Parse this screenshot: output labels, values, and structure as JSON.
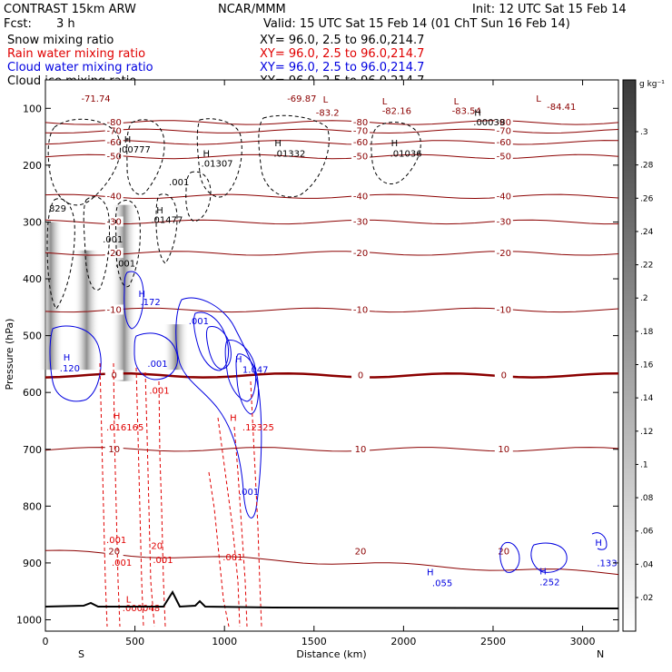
{
  "header": {
    "model": "CONTRAST 15km ARW",
    "org": "NCAR/MMM",
    "init": "Init: 12 UTC Sat 15 Feb 14",
    "fcst_label": "Fcst:",
    "fcst_value": "3 h",
    "valid": "Valid: 15 UTC Sat 15 Feb 14 (01 ChT Sun 16 Feb 14)"
  },
  "colors": {
    "snow": "#000000",
    "rain": "#e00000",
    "cloud_water": "#0000e0",
    "cloud_ice": "#000000",
    "temperature": "#8b0000",
    "terrain": "#000000"
  },
  "chart_data": {
    "type": "cross-section",
    "fields": [
      {
        "name": "Snow mixing ratio",
        "color": "#000000",
        "xy": "XY=  96.0,  2.5 to  96.0,214.7",
        "style": "shaded"
      },
      {
        "name": "Rain water mixing ratio",
        "color": "#e00000",
        "xy": "XY=  96.0,  2.5 to  96.0,214.7",
        "style": "dashed"
      },
      {
        "name": "Cloud water mixing ratio",
        "color": "#0000e0",
        "xy": "XY=  96.0,  2.5 to  96.0,214.7",
        "style": "solid"
      },
      {
        "name": "Cloud ice mixing ratio",
        "color": "#000000",
        "xy": "XY=  96.0,  2.5 to  96.0,214.7",
        "style": "dashed"
      }
    ],
    "xlabel": "Distance (km)",
    "ylabel": "Pressure (hPa)",
    "xlim": [
      0,
      3200
    ],
    "ylim": [
      1020,
      50
    ],
    "x_ticks": [
      0,
      500,
      1000,
      1500,
      2000,
      2500,
      3000
    ],
    "y_ticks": [
      100,
      200,
      300,
      400,
      500,
      600,
      700,
      800,
      900,
      1000
    ],
    "endpoint_labels": {
      "left": "S",
      "right": "N"
    },
    "colorbar": {
      "units": "g kg⁻¹",
      "ticks": [
        ".02",
        ".04",
        ".06",
        ".08",
        ".1",
        ".12",
        ".14",
        ".16",
        ".18",
        ".2",
        ".22",
        ".24",
        ".26",
        ".28",
        ".3"
      ]
    },
    "snow_columns": [
      {
        "x": 30,
        "p_top": 300,
        "p_bottom": 560
      },
      {
        "x": 230,
        "p_top": 350,
        "p_bottom": 560
      },
      {
        "x": 440,
        "p_top": 270,
        "p_bottom": 580
      },
      {
        "x": 730,
        "p_top": 480,
        "p_bottom": 560
      }
    ],
    "isotherms": [
      {
        "label": "-80",
        "p": 125
      },
      {
        "label": "-70",
        "p": 140
      },
      {
        "label": "-60",
        "p": 160
      },
      {
        "label": "-50",
        "p": 185
      },
      {
        "label": "-40",
        "p": 255
      },
      {
        "label": "-30",
        "p": 300
      },
      {
        "label": "-20",
        "p": 355
      },
      {
        "label": "-10",
        "p": 455
      },
      {
        "label": "0",
        "p": 570
      },
      {
        "label": "10",
        "p": 700
      },
      {
        "label": "20",
        "p": 880
      }
    ],
    "annotations": [
      {
        "text": "-71.74",
        "x": 200,
        "p": 88,
        "color": "#8b0000"
      },
      {
        "text": "-69.87",
        "x": 1350,
        "p": 88,
        "color": "#8b0000"
      },
      {
        "text": "L",
        "x": 1550,
        "p": 90,
        "color": "#8b0000"
      },
      {
        "text": "-83.2",
        "x": 1510,
        "p": 113,
        "color": "#8b0000"
      },
      {
        "text": "L",
        "x": 1880,
        "p": 93,
        "color": "#8b0000"
      },
      {
        "text": "-82.16",
        "x": 1880,
        "p": 110,
        "color": "#8b0000"
      },
      {
        "text": "L",
        "x": 2280,
        "p": 93,
        "color": "#8b0000"
      },
      {
        "text": "-83.54",
        "x": 2270,
        "p": 110,
        "color": "#8b0000"
      },
      {
        "text": "L",
        "x": 2740,
        "p": 88,
        "color": "#8b0000"
      },
      {
        "text": "-84.41",
        "x": 2800,
        "p": 103,
        "color": "#8b0000"
      },
      {
        "text": "H",
        "x": 2395,
        "p": 113,
        "color": "#000000"
      },
      {
        "text": ".00039",
        "x": 2390,
        "p": 130,
        "color": "#000000"
      },
      {
        "text": "H",
        "x": 440,
        "p": 160,
        "color": "#000000"
      },
      {
        "text": ".00777",
        "x": 410,
        "p": 178,
        "color": "#000000"
      },
      {
        "text": "H",
        "x": 880,
        "p": 185,
        "color": "#000000"
      },
      {
        "text": ".01307",
        "x": 870,
        "p": 203,
        "color": "#000000"
      },
      {
        "text": "H",
        "x": 1280,
        "p": 167,
        "color": "#000000"
      },
      {
        "text": ".01332",
        "x": 1275,
        "p": 185,
        "color": "#000000"
      },
      {
        "text": "H",
        "x": 1930,
        "p": 167,
        "color": "#000000"
      },
      {
        "text": ".01036",
        "x": 1925,
        "p": 185,
        "color": "#000000"
      },
      {
        "text": ".001",
        "x": 690,
        "p": 235,
        "color": "#000000"
      },
      {
        "text": "H",
        "x": 620,
        "p": 285,
        "color": "#000000"
      },
      {
        "text": ".01477",
        "x": 590,
        "p": 302,
        "color": "#000000"
      },
      {
        "text": "829",
        "x": 20,
        "p": 282,
        "color": "#000000"
      },
      {
        "text": ".001",
        "x": 320,
        "p": 336,
        "color": "#000000"
      },
      {
        "text": ".001",
        "x": 390,
        "p": 378,
        "color": "#000000"
      },
      {
        "text": "H",
        "x": 100,
        "p": 544,
        "color": "#0000e0"
      },
      {
        "text": ".120",
        "x": 80,
        "p": 563,
        "color": "#0000e0"
      },
      {
        "text": "H",
        "x": 520,
        "p": 432,
        "color": "#0000e0"
      },
      {
        "text": ".172",
        "x": 530,
        "p": 446,
        "color": "#0000e0"
      },
      {
        "text": ".001",
        "x": 800,
        "p": 480,
        "color": "#0000e0"
      },
      {
        "text": ".001",
        "x": 570,
        "p": 555,
        "color": "#0000e0"
      },
      {
        "text": "H",
        "x": 1060,
        "p": 547,
        "color": "#0000e0"
      },
      {
        "text": "1.047",
        "x": 1100,
        "p": 565,
        "color": "#0000e0"
      },
      {
        "text": ".001",
        "x": 1080,
        "p": 780,
        "color": "#0000e0"
      },
      {
        "text": "H",
        "x": 2130,
        "p": 922,
        "color": "#0000e0"
      },
      {
        "text": ".055",
        "x": 2160,
        "p": 941,
        "color": "#0000e0"
      },
      {
        "text": "H",
        "x": 2760,
        "p": 920,
        "color": "#0000e0"
      },
      {
        "text": ".252",
        "x": 2760,
        "p": 939,
        "color": "#0000e0"
      },
      {
        "text": "H",
        "x": 3070,
        "p": 870,
        "color": "#0000e0"
      },
      {
        "text": ".133",
        "x": 3080,
        "p": 906,
        "color": "#0000e0"
      },
      {
        "text": ".001",
        "x": 580,
        "p": 602,
        "color": "#e00000"
      },
      {
        "text": "H",
        "x": 380,
        "p": 647,
        "color": "#e00000"
      },
      {
        "text": ".016165",
        "x": 340,
        "p": 667,
        "color": "#e00000"
      },
      {
        "text": "H",
        "x": 1030,
        "p": 650,
        "color": "#e00000"
      },
      {
        "text": ".12325",
        "x": 1100,
        "p": 667,
        "color": "#e00000"
      },
      {
        "text": ".001",
        "x": 340,
        "p": 865,
        "color": "#e00000"
      },
      {
        "text": ".001",
        "x": 370,
        "p": 905,
        "color": "#e00000"
      },
      {
        "text": "20",
        "x": 590,
        "p": 875,
        "color": "#e00000"
      },
      {
        "text": ".001",
        "x": 600,
        "p": 900,
        "color": "#e00000"
      },
      {
        "text": ".001",
        "x": 990,
        "p": 895,
        "color": "#e00000"
      },
      {
        "text": "L",
        "x": 450,
        "p": 970,
        "color": "#e00000"
      },
      {
        "text": ".000048",
        "x": 430,
        "p": 985,
        "color": "#e00000"
      }
    ]
  }
}
